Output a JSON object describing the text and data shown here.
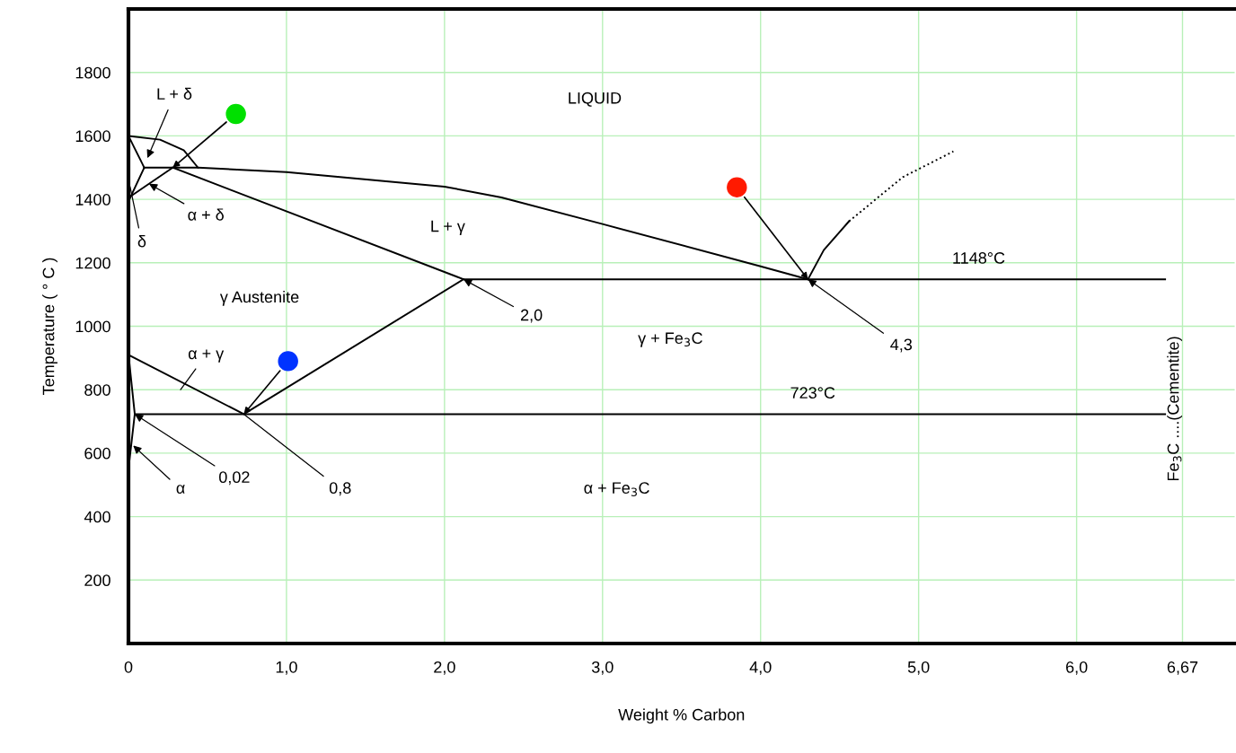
{
  "chart_data": {
    "type": "line",
    "xlabel": "Weight % Carbon",
    "ylabel": "Temperature ( ° C )",
    "xlim": [
      0,
      7
    ],
    "ylim": [
      0,
      2000
    ],
    "xticks": [
      0,
      {
        "value": 1,
        "label": "1,0"
      },
      {
        "value": 2,
        "label": "2,0"
      },
      {
        "value": 3,
        "label": "3,0"
      },
      {
        "value": 4,
        "label": "4,0"
      },
      {
        "value": 5,
        "label": "5,0"
      },
      {
        "value": 6,
        "label": "6,0"
      },
      {
        "value": 6.67,
        "label": "6,67"
      }
    ],
    "yticks": [
      200,
      400,
      600,
      800,
      1000,
      1200,
      1400,
      1600,
      1800
    ],
    "grid": true,
    "legend": false,
    "series": [
      {
        "type": "line",
        "color": "#000000",
        "x": [
          0,
          0.2,
          0.35,
          0.44
        ],
        "values": [
          1600,
          1588,
          1555,
          1500
        ]
      },
      {
        "color": "#000000",
        "x": [
          0.1,
          0.44,
          1,
          2,
          2.36,
          3,
          4,
          4.3
        ],
        "values": [
          1500,
          1500,
          1486,
          1440,
          1406,
          1322,
          1189,
          1148
        ]
      },
      {
        "type": "line",
        "color": "#000000",
        "x": [
          0,
          0.1
        ],
        "values": [
          1600,
          1500
        ]
      },
      {
        "type": "line",
        "color": "#000000",
        "x": [
          0.01,
          0.1
        ],
        "values": [
          1404,
          1500
        ]
      },
      {
        "type": "line",
        "color": "#000000",
        "x": [
          0,
          0.28
        ],
        "values": [
          1405,
          1500
        ]
      },
      {
        "type": "line",
        "color": "#000000",
        "x": [
          0.28,
          2.12,
          6.56
        ],
        "values": [
          1500,
          1148,
          1148
        ]
      },
      {
        "type": "line",
        "color": "#000000",
        "x": [
          0,
          0.73,
          2.12
        ],
        "values": [
          910,
          723,
          1148
        ]
      },
      {
        "type": "line",
        "color": "#000000",
        "x": [
          0.04,
          6.56
        ],
        "values": [
          723,
          723
        ]
      },
      {
        "type": "line",
        "color": "#000000",
        "x": [
          0,
          0.04,
          0
        ],
        "values": [
          912,
          723,
          550
        ]
      },
      {
        "type": "line",
        "color": "#000000",
        "x": [
          4.3,
          4.4,
          4.56
        ],
        "values": [
          1148,
          1240,
          1331
        ]
      },
      {
        "type": "line",
        "color": "#000000",
        "line_style": "dotted",
        "x": [
          4.56,
          4.9,
          5.22
        ],
        "values": [
          1331,
          1470,
          1551
        ]
      },
      {
        "type": "scatter",
        "marker": "circle",
        "x": [
          0.68,
          3.85,
          1.01
        ],
        "values": [
          1669,
          1438,
          890
        ],
        "colors": [
          "#00e000",
          "#ff1a00",
          "#0033ff"
        ]
      }
    ],
    "annotations": [
      "L + δ",
      {
        "text": "α + δ",
        "x": 0.13,
        "y": 1449
      },
      {
        "text": "δ",
        "x": 0.01,
        "y": 1440
      },
      "α + γ",
      {
        "text": "0,02",
        "x": 0.04,
        "y": 723
      },
      {
        "text": "α",
        "x": 0.03,
        "y": 624
      },
      {
        "text": "0,8",
        "x": 0.73,
        "y": 723
      },
      {
        "text": "2,0",
        "x": 2.12,
        "y": 1148
      },
      {
        "text": "4,3",
        "x": 4.3,
        "y": 1148
      },
      {
        "text": "1148°C",
        "x": 5.38,
        "y": 1148
      },
      {
        "text": "723°C",
        "x": 4.33,
        "y": 723
      },
      "LIQUID",
      "L + γ",
      "γ Austenite",
      "γ + Fe$_{3}$C",
      "α + Fe$_{3}$C",
      "Fe$_{3}$C ....(Cementite)"
    ]
  }
}
